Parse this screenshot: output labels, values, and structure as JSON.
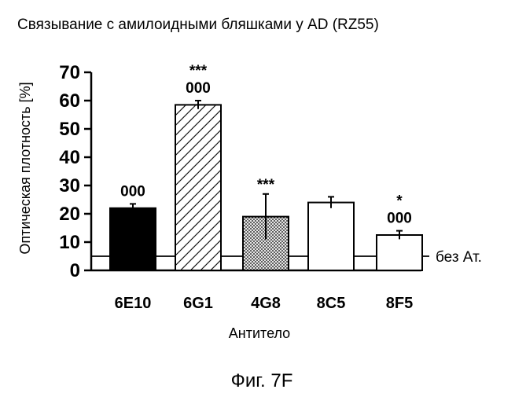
{
  "chart_data": {
    "type": "bar",
    "title": "Связывание с амилоидными бляшками у AD (RZ55)",
    "xlabel": "Антитело",
    "ylabel": "Оптическая плотность [%]",
    "ylim": [
      0,
      70
    ],
    "yticks": [
      "0",
      "10",
      "20",
      "30",
      "40",
      "50",
      "60",
      "70"
    ],
    "categories": [
      "6E10",
      "6G1",
      "4G8",
      "8C5",
      "8F5"
    ],
    "values": [
      22,
      58.5,
      19,
      24,
      12.5
    ],
    "errors": [
      1.5,
      1.5,
      8,
      2,
      1.5
    ],
    "bar_fills": [
      "solid-black",
      "diagonal-hatch",
      "dots",
      "white",
      "white"
    ],
    "significance_top": [
      "",
      "***",
      "***",
      "",
      "*"
    ],
    "significance_bottom": [
      "000",
      "000",
      "",
      "",
      "000"
    ],
    "baseline": {
      "value": 5,
      "label": "без Ат."
    },
    "grid": false,
    "legend": "none"
  },
  "caption": "Фиг. 7F"
}
